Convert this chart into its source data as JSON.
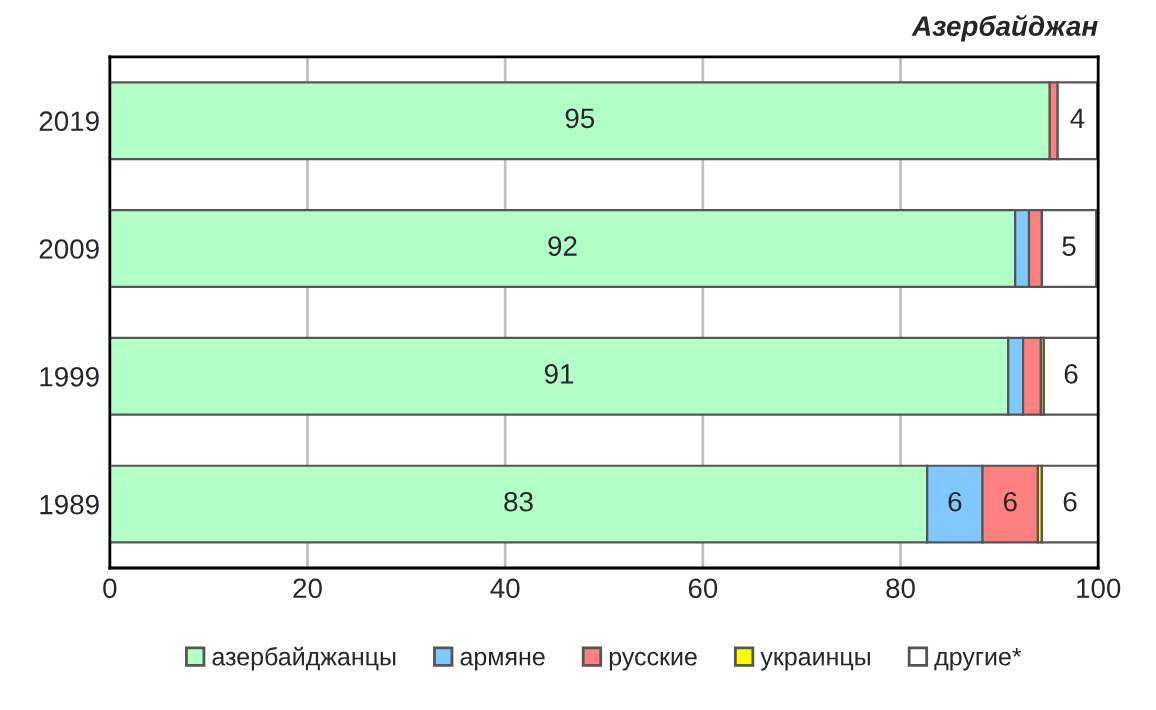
{
  "chart_data": {
    "type": "bar",
    "orientation": "horizontal",
    "stacked": true,
    "title": "Азербайджан",
    "categories": [
      "2019",
      "2009",
      "1999",
      "1989"
    ],
    "series": [
      {
        "name": "азербайджанцы",
        "color": "#b3ffc8",
        "values": [
          95.1,
          91.6,
          90.9,
          82.7
        ],
        "value_labels": [
          "95",
          "92",
          "91",
          "83"
        ]
      },
      {
        "name": "армяне",
        "color": "#80c8ff",
        "values": [
          null,
          1.4,
          1.5,
          5.6
        ],
        "value_labels": [
          null,
          null,
          null,
          "6"
        ]
      },
      {
        "name": "русские",
        "color": "#ff8080",
        "values": [
          0.8,
          1.3,
          1.8,
          5.6
        ],
        "value_labels": [
          null,
          null,
          null,
          "6"
        ]
      },
      {
        "name": "украинцы",
        "color": "#ffff00",
        "values": [
          null,
          null,
          0.3,
          0.4
        ],
        "value_labels": [
          null,
          null,
          null,
          null
        ]
      },
      {
        "name": "другие*",
        "color": "#ffffff",
        "values": [
          4.0,
          5.5,
          5.5,
          5.7
        ],
        "value_labels": [
          "4",
          "5",
          "6",
          "6"
        ]
      }
    ],
    "xlim": [
      0,
      100
    ],
    "xticks": [
      0,
      20,
      40,
      60,
      80,
      100
    ],
    "grid": "x",
    "legend": "bottom"
  }
}
